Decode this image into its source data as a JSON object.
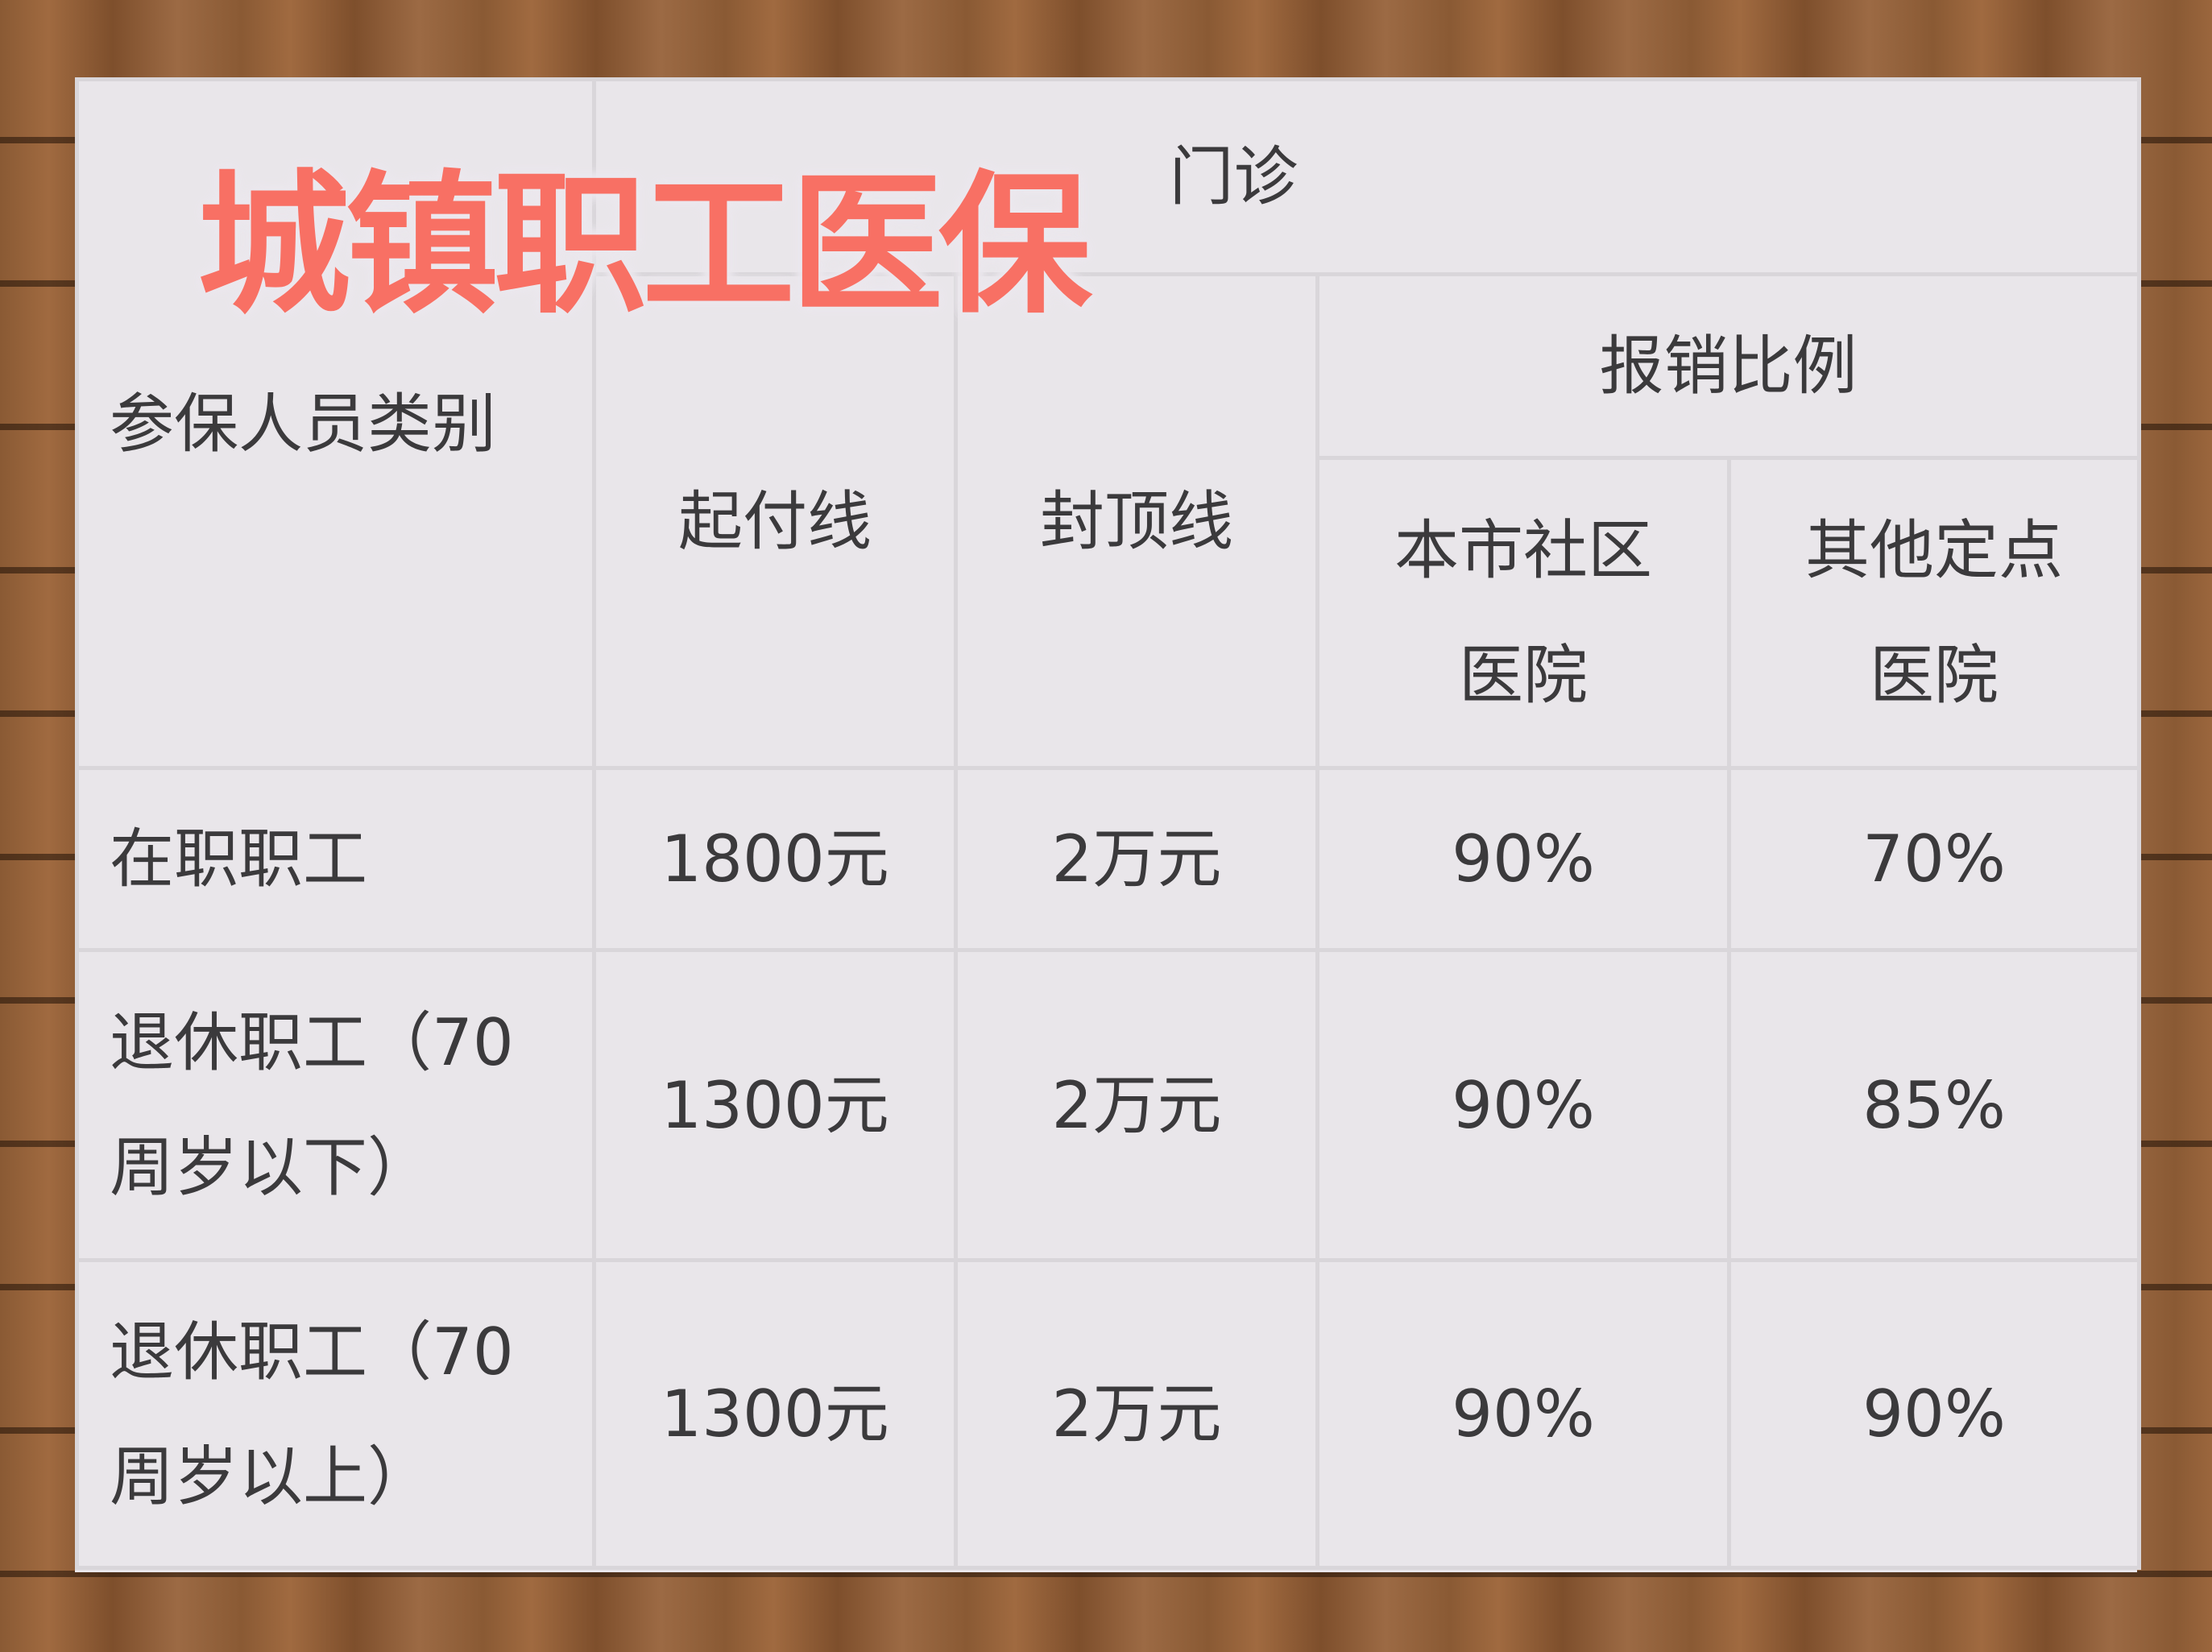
{
  "title": "城镇职工医保",
  "colors": {
    "title": "#f87064",
    "table_bg": "#e9e6ea",
    "border": "#d9d6da",
    "text": "#3b3a3c"
  },
  "header": {
    "category": "参保人员类别",
    "outpatient": "门诊",
    "deductible": "起付线",
    "cap": "封顶线",
    "reimbursement": "报销比例",
    "local_community": "本市社区医院",
    "other_designated": "其他定点医院"
  },
  "rows": [
    {
      "category": "在职职工",
      "deductible": "1800元",
      "cap": "2万元",
      "local": "90%",
      "other": "70%"
    },
    {
      "category": "退休职工（70周岁以下）",
      "deductible": "1300元",
      "cap": "2万元",
      "local": "90%",
      "other": "85%"
    },
    {
      "category": "退休职工（70周岁以上）",
      "deductible": "1300元",
      "cap": "2万元",
      "local": "90%",
      "other": "90%"
    }
  ]
}
